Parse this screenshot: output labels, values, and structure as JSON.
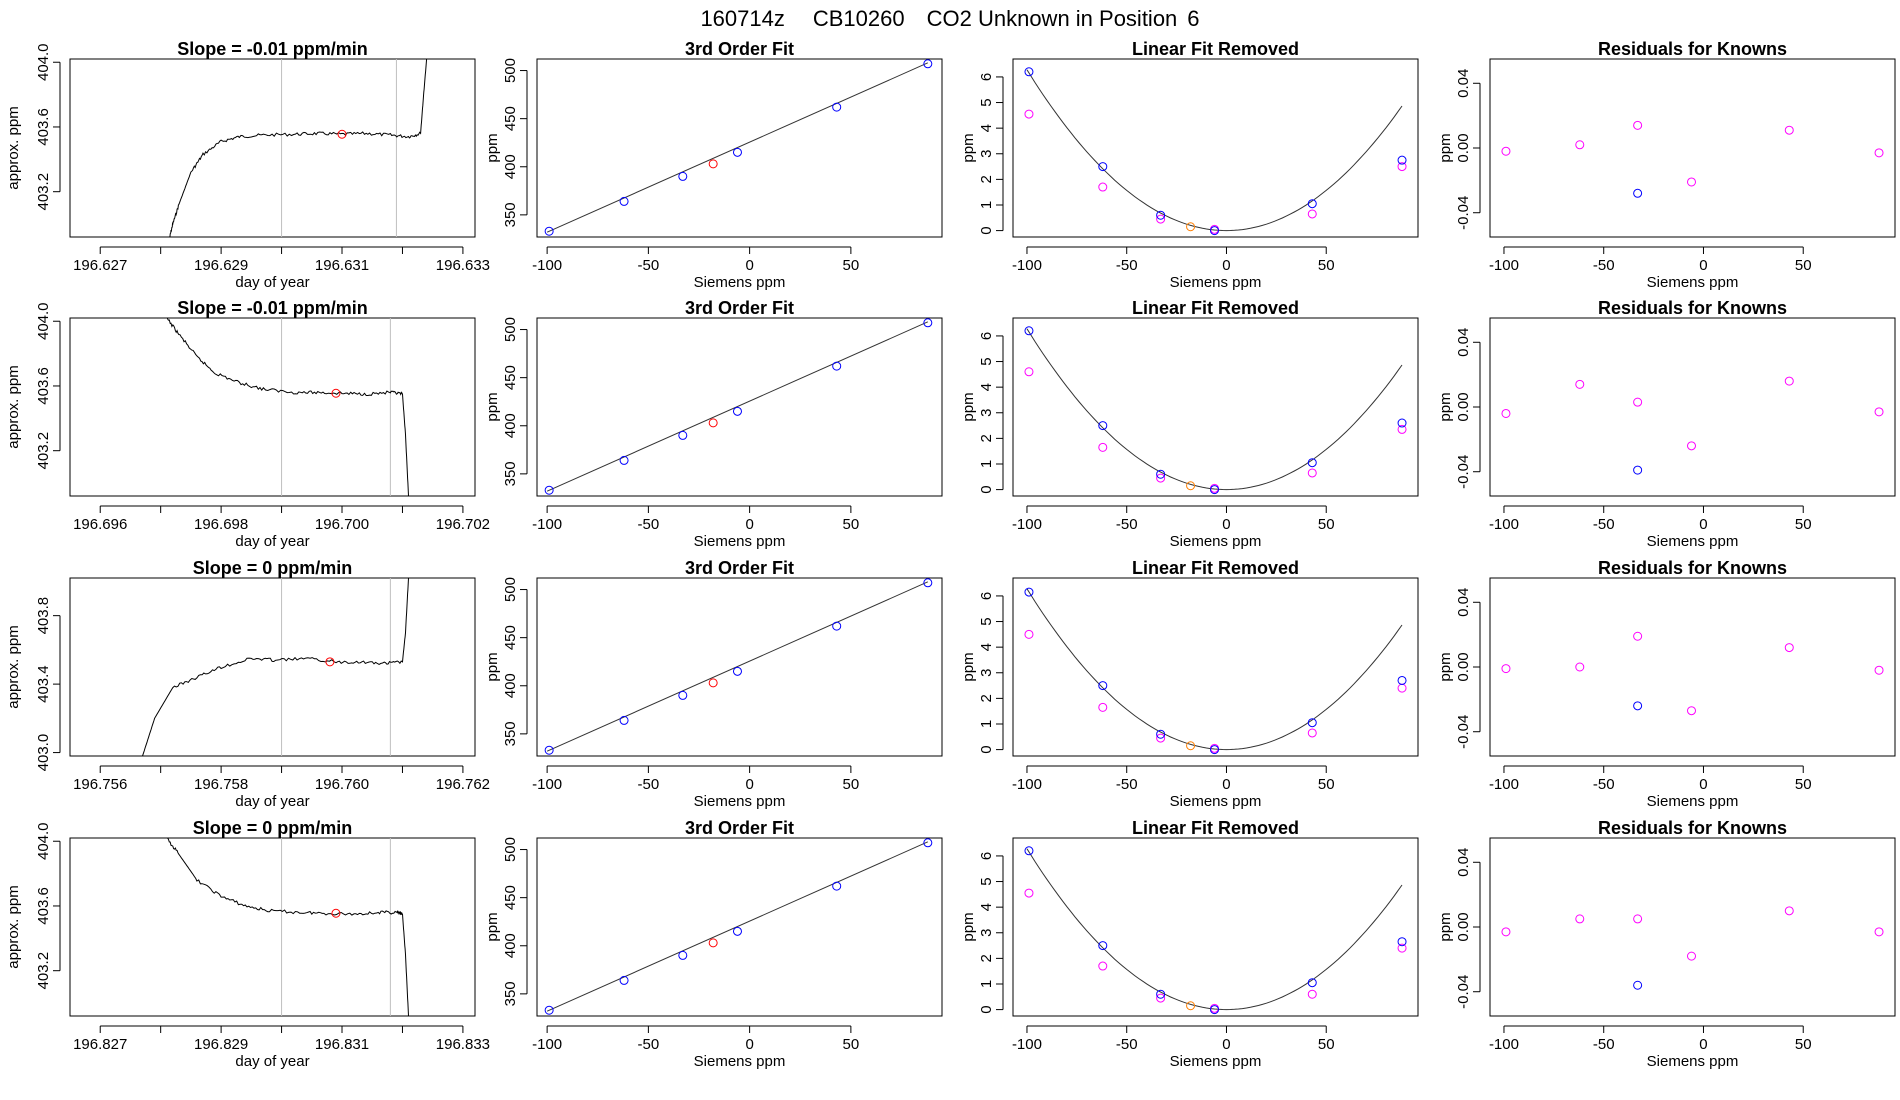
{
  "figure": {
    "date_code": "160714z",
    "cylinder_id": "CB10260",
    "description": "CO2 Unknown in Position",
    "position": "6"
  },
  "colors": {
    "trace": "#000000",
    "fit_line": "#333333",
    "vline": "#bfbfbf",
    "known_point": "#0000ff",
    "unknown_point": "#ff0000",
    "unknown_point_fit": "#ff7f00",
    "linear_resid": "#ff00ff"
  },
  "chart_data": [
    {
      "type": "line",
      "row": 0,
      "panel": "timeseries",
      "title_prefix": "Slope = ",
      "slope": "-0.01",
      "slope_unit": "ppm/min",
      "xlabel": "day of year",
      "ylabel": "approx. ppm",
      "xlim": [
        196.6265,
        196.6332
      ],
      "ylim": [
        402.92,
        404.02
      ],
      "xticks": [
        196.627,
        196.628,
        196.629,
        196.63,
        196.631,
        196.632,
        196.633
      ],
      "xtick_labels": [
        "196.627",
        "",
        "196.629",
        "",
        "196.631",
        "",
        "196.633"
      ],
      "yticks": [
        403.2,
        403.6,
        404.0
      ],
      "vlines": [
        196.63,
        196.6319
      ],
      "trace": [
        [
          196.62815,
          402.92
        ],
        [
          196.6282,
          403.0
        ],
        [
          196.6283,
          403.12
        ],
        [
          196.6285,
          403.32
        ],
        [
          196.6287,
          403.43
        ],
        [
          196.629,
          403.51
        ],
        [
          196.6293,
          403.54
        ],
        [
          196.6297,
          403.55
        ],
        [
          196.6302,
          403.555
        ],
        [
          196.6306,
          403.56
        ],
        [
          196.631,
          403.555
        ],
        [
          196.6314,
          403.56
        ],
        [
          196.6318,
          403.55
        ],
        [
          196.6321,
          403.54
        ],
        [
          196.6323,
          403.56
        ],
        [
          196.63235,
          403.8
        ],
        [
          196.6324,
          404.02
        ]
      ],
      "point": [
        196.631,
        403.555
      ]
    },
    {
      "type": "line",
      "row": 1,
      "panel": "timeseries",
      "title_prefix": "Slope = ",
      "slope": "-0.01",
      "slope_unit": "ppm/min",
      "xlabel": "day of year",
      "ylabel": "approx. ppm",
      "xlim": [
        196.6955,
        196.7022
      ],
      "ylim": [
        402.92,
        404.02
      ],
      "xticks": [
        196.696,
        196.697,
        196.698,
        196.699,
        196.7,
        196.701,
        196.702
      ],
      "xtick_labels": [
        "196.696",
        "",
        "196.698",
        "",
        "196.700",
        "",
        "196.702"
      ],
      "yticks": [
        403.2,
        403.6,
        404.0
      ],
      "vlines": [
        196.699,
        196.7008
      ],
      "trace": [
        [
          196.6971,
          404.02
        ],
        [
          196.6973,
          403.92
        ],
        [
          196.6976,
          403.78
        ],
        [
          196.6979,
          403.68
        ],
        [
          196.6983,
          403.62
        ],
        [
          196.6987,
          403.58
        ],
        [
          196.6992,
          403.56
        ],
        [
          196.6996,
          403.56
        ],
        [
          196.7,
          403.555
        ],
        [
          196.7004,
          403.55
        ],
        [
          196.7008,
          403.56
        ],
        [
          196.701,
          403.55
        ],
        [
          196.70105,
          403.3
        ],
        [
          196.7011,
          402.92
        ]
      ],
      "point": [
        196.6999,
        403.555
      ]
    },
    {
      "type": "line",
      "row": 2,
      "panel": "timeseries",
      "title_prefix": "Slope = ",
      "slope": "0",
      "slope_unit": "ppm/min",
      "xlabel": "day of year",
      "ylabel": "approx. ppm",
      "xlim": [
        196.7555,
        196.7622
      ],
      "ylim": [
        402.98,
        404.02
      ],
      "xticks": [
        196.756,
        196.757,
        196.758,
        196.759,
        196.76,
        196.761,
        196.762
      ],
      "xtick_labels": [
        "196.756",
        "",
        "196.758",
        "",
        "196.760",
        "",
        "196.762"
      ],
      "yticks": [
        403.0,
        403.4,
        403.8
      ],
      "vlines": [
        196.759,
        196.7608
      ],
      "trace": [
        [
          196.7567,
          402.98
        ],
        [
          196.7569,
          403.2
        ],
        [
          196.7572,
          403.38
        ],
        [
          196.7576,
          403.44
        ],
        [
          196.758,
          403.5
        ],
        [
          196.7585,
          403.55
        ],
        [
          196.7589,
          403.54
        ],
        [
          196.7594,
          403.55
        ],
        [
          196.7599,
          403.53
        ],
        [
          196.7603,
          403.53
        ],
        [
          196.7607,
          403.52
        ],
        [
          196.761,
          403.53
        ],
        [
          196.76105,
          403.7
        ],
        [
          196.7611,
          404.02
        ]
      ],
      "point": [
        196.7598,
        403.53
      ]
    },
    {
      "type": "line",
      "row": 3,
      "panel": "timeseries",
      "title_prefix": "Slope = ",
      "slope": "0",
      "slope_unit": "ppm/min",
      "xlabel": "day of year",
      "ylabel": "approx. ppm",
      "xlim": [
        196.8265,
        196.8332
      ],
      "ylim": [
        402.92,
        404.02
      ],
      "xticks": [
        196.827,
        196.828,
        196.829,
        196.83,
        196.831,
        196.832,
        196.833
      ],
      "xtick_labels": [
        "196.827",
        "",
        "196.829",
        "",
        "196.831",
        "",
        "196.833"
      ],
      "yticks": [
        403.2,
        403.6,
        404.0
      ],
      "vlines": [
        196.83,
        196.8318
      ],
      "trace": [
        [
          196.8281,
          404.02
        ],
        [
          196.8283,
          403.92
        ],
        [
          196.8286,
          403.76
        ],
        [
          196.829,
          403.66
        ],
        [
          196.8294,
          403.6
        ],
        [
          196.8298,
          403.57
        ],
        [
          196.8303,
          403.56
        ],
        [
          196.8307,
          403.555
        ],
        [
          196.8312,
          403.55
        ],
        [
          196.8316,
          403.56
        ],
        [
          196.8319,
          403.56
        ],
        [
          196.832,
          403.55
        ],
        [
          196.83205,
          403.3
        ],
        [
          196.8321,
          402.92
        ]
      ],
      "point": [
        196.8309,
        403.555
      ]
    },
    {
      "type": "scatter",
      "row": 0,
      "panel": "fit",
      "title": "3rd Order Fit",
      "xlabel": "Siemens ppm",
      "ylabel": "ppm",
      "xlim": [
        -105,
        95
      ],
      "ylim": [
        327,
        512
      ],
      "xticks": [
        -100,
        -50,
        0,
        50
      ],
      "yticks": [
        350,
        400,
        450,
        500
      ],
      "line": [
        [
          -100,
          332
        ],
        [
          88,
          508
        ]
      ],
      "known_x": [
        -99,
        -62,
        -33,
        -6,
        43,
        88
      ],
      "known_y": [
        333,
        364,
        390,
        415,
        462,
        507
      ],
      "unknown_x": [
        -18
      ],
      "unknown_y": [
        403
      ]
    },
    {
      "type": "scatter",
      "row": 1,
      "panel": "fit",
      "title": "3rd Order Fit",
      "xlabel": "Siemens ppm",
      "ylabel": "ppm",
      "xlim": [
        -105,
        95
      ],
      "ylim": [
        327,
        512
      ],
      "xticks": [
        -100,
        -50,
        0,
        50
      ],
      "yticks": [
        350,
        400,
        450,
        500
      ],
      "line": [
        [
          -100,
          332
        ],
        [
          88,
          508
        ]
      ],
      "known_x": [
        -99,
        -62,
        -33,
        -6,
        43,
        88
      ],
      "known_y": [
        333,
        364,
        390,
        415,
        462,
        507
      ],
      "unknown_x": [
        -18
      ],
      "unknown_y": [
        403
      ]
    },
    {
      "type": "scatter",
      "row": 2,
      "panel": "fit",
      "title": "3rd Order Fit",
      "xlabel": "Siemens ppm",
      "ylabel": "ppm",
      "xlim": [
        -105,
        95
      ],
      "ylim": [
        327,
        512
      ],
      "xticks": [
        -100,
        -50,
        0,
        50
      ],
      "yticks": [
        350,
        400,
        450,
        500
      ],
      "line": [
        [
          -100,
          332
        ],
        [
          88,
          508
        ]
      ],
      "known_x": [
        -99,
        -62,
        -33,
        -6,
        43,
        88
      ],
      "known_y": [
        333,
        364,
        390,
        415,
        462,
        507
      ],
      "unknown_x": [
        -18
      ],
      "unknown_y": [
        403
      ]
    },
    {
      "type": "scatter",
      "row": 3,
      "panel": "fit",
      "title": "3rd Order Fit",
      "xlabel": "Siemens ppm",
      "ylabel": "ppm",
      "xlim": [
        -105,
        95
      ],
      "ylim": [
        327,
        512
      ],
      "xticks": [
        -100,
        -50,
        0,
        50
      ],
      "yticks": [
        350,
        400,
        450,
        500
      ],
      "line": [
        [
          -100,
          332
        ],
        [
          88,
          508
        ]
      ],
      "known_x": [
        -99,
        -62,
        -33,
        -6,
        43,
        88
      ],
      "known_y": [
        333,
        364,
        390,
        415,
        462,
        507
      ],
      "unknown_x": [
        -18
      ],
      "unknown_y": [
        403
      ]
    },
    {
      "type": "scatter",
      "row": 0,
      "panel": "linear",
      "title": "Linear Fit Removed",
      "xlabel": "Siemens ppm",
      "ylabel": "ppm",
      "xlim": [
        -107,
        96
      ],
      "ylim": [
        -0.25,
        6.7
      ],
      "xticks": [
        -100,
        -50,
        0,
        50
      ],
      "yticks": [
        0,
        1,
        2,
        3,
        4,
        5,
        6
      ],
      "curve_coef": [
        0.000628,
        0.0
      ],
      "known_x": [
        -99,
        -62,
        -33,
        -6,
        43,
        88
      ],
      "known_y": [
        6.2,
        2.5,
        0.6,
        0.0,
        1.05,
        2.75
      ],
      "resid_x": [
        -99,
        -62,
        -33,
        -6,
        43,
        88
      ],
      "resid_y": [
        4.55,
        1.7,
        0.45,
        0.05,
        0.65,
        2.5
      ],
      "unknown_x": [
        -18
      ],
      "unknown_y": [
        0.15
      ]
    },
    {
      "type": "scatter",
      "row": 1,
      "panel": "linear",
      "title": "Linear Fit Removed",
      "xlabel": "Siemens ppm",
      "ylabel": "ppm",
      "xlim": [
        -107,
        96
      ],
      "ylim": [
        -0.25,
        6.7
      ],
      "xticks": [
        -100,
        -50,
        0,
        50
      ],
      "yticks": [
        0,
        1,
        2,
        3,
        4,
        5,
        6
      ],
      "curve_coef": [
        0.000628,
        0.0
      ],
      "known_x": [
        -99,
        -62,
        -33,
        -6,
        43,
        88
      ],
      "known_y": [
        6.2,
        2.5,
        0.6,
        0.0,
        1.05,
        2.6
      ],
      "resid_x": [
        -99,
        -62,
        -33,
        -6,
        43,
        88
      ],
      "resid_y": [
        4.6,
        1.65,
        0.45,
        0.05,
        0.65,
        2.35
      ],
      "unknown_x": [
        -18
      ],
      "unknown_y": [
        0.15
      ]
    },
    {
      "type": "scatter",
      "row": 2,
      "panel": "linear",
      "title": "Linear Fit Removed",
      "xlabel": "Siemens ppm",
      "ylabel": "ppm",
      "xlim": [
        -107,
        96
      ],
      "ylim": [
        -0.25,
        6.7
      ],
      "xticks": [
        -100,
        -50,
        0,
        50
      ],
      "yticks": [
        0,
        1,
        2,
        3,
        4,
        5,
        6
      ],
      "curve_coef": [
        0.000628,
        0.0
      ],
      "known_x": [
        -99,
        -62,
        -33,
        -6,
        43,
        88
      ],
      "known_y": [
        6.15,
        2.5,
        0.6,
        0.0,
        1.05,
        2.7
      ],
      "resid_x": [
        -99,
        -62,
        -33,
        -6,
        43,
        88
      ],
      "resid_y": [
        4.5,
        1.65,
        0.45,
        0.05,
        0.65,
        2.4
      ],
      "unknown_x": [
        -18
      ],
      "unknown_y": [
        0.15
      ]
    },
    {
      "type": "scatter",
      "row": 3,
      "panel": "linear",
      "title": "Linear Fit Removed",
      "xlabel": "Siemens ppm",
      "ylabel": "ppm",
      "xlim": [
        -107,
        96
      ],
      "ylim": [
        -0.25,
        6.7
      ],
      "xticks": [
        -100,
        -50,
        0,
        50
      ],
      "yticks": [
        0,
        1,
        2,
        3,
        4,
        5,
        6
      ],
      "curve_coef": [
        0.000628,
        0.0
      ],
      "known_x": [
        -99,
        -62,
        -33,
        -6,
        43,
        88
      ],
      "known_y": [
        6.2,
        2.5,
        0.6,
        0.0,
        1.05,
        2.65
      ],
      "resid_x": [
        -99,
        -62,
        -33,
        -6,
        43,
        88
      ],
      "resid_y": [
        4.55,
        1.7,
        0.45,
        0.05,
        0.6,
        2.4
      ],
      "unknown_x": [
        -18
      ],
      "unknown_y": [
        0.15
      ]
    },
    {
      "type": "scatter",
      "row": 0,
      "panel": "residuals",
      "title": "Residuals for Knowns",
      "xlabel": "Siemens ppm",
      "ylabel": "ppm",
      "xlim": [
        -107,
        96
      ],
      "ylim": [
        -0.055,
        0.055
      ],
      "xticks": [
        -100,
        -50,
        0,
        50
      ],
      "yticks": [
        -0.04,
        0.0,
        0.04
      ],
      "ytick_labels": [
        "-0.04",
        "0.00",
        "0.04"
      ],
      "resid_x": [
        -99,
        -62,
        -33,
        -6,
        43,
        88
      ],
      "resid_y": [
        -0.002,
        0.002,
        0.014,
        -0.021,
        0.011,
        -0.003
      ],
      "known_x": [
        -33
      ],
      "known_y": [
        -0.028
      ]
    },
    {
      "type": "scatter",
      "row": 1,
      "panel": "residuals",
      "title": "Residuals for Knowns",
      "xlabel": "Siemens ppm",
      "ylabel": "ppm",
      "xlim": [
        -107,
        96
      ],
      "ylim": [
        -0.055,
        0.055
      ],
      "xticks": [
        -100,
        -50,
        0,
        50
      ],
      "yticks": [
        -0.04,
        0.0,
        0.04
      ],
      "ytick_labels": [
        "-0.04",
        "0.00",
        "0.04"
      ],
      "resid_x": [
        -99,
        -62,
        -33,
        -6,
        43,
        88
      ],
      "resid_y": [
        -0.004,
        0.014,
        0.003,
        -0.024,
        0.016,
        -0.003
      ],
      "known_x": [
        -33
      ],
      "known_y": [
        -0.039
      ]
    },
    {
      "type": "scatter",
      "row": 2,
      "panel": "residuals",
      "title": "Residuals for Knowns",
      "xlabel": "Siemens ppm",
      "ylabel": "ppm",
      "xlim": [
        -107,
        96
      ],
      "ylim": [
        -0.055,
        0.055
      ],
      "xticks": [
        -100,
        -50,
        0,
        50
      ],
      "yticks": [
        -0.04,
        0.0,
        0.04
      ],
      "ytick_labels": [
        "-0.04",
        "0.00",
        "0.04"
      ],
      "resid_x": [
        -99,
        -62,
        -33,
        -6,
        43,
        88
      ],
      "resid_y": [
        -0.001,
        0.0,
        0.019,
        -0.027,
        0.012,
        -0.002
      ],
      "known_x": [
        -33
      ],
      "known_y": [
        -0.024
      ]
    },
    {
      "type": "scatter",
      "row": 3,
      "panel": "residuals",
      "title": "Residuals for Knowns",
      "xlabel": "Siemens ppm",
      "ylabel": "ppm",
      "xlim": [
        -107,
        96
      ],
      "ylim": [
        -0.055,
        0.055
      ],
      "xticks": [
        -100,
        -50,
        0,
        50
      ],
      "yticks": [
        -0.04,
        0.0,
        0.04
      ],
      "ytick_labels": [
        "-0.04",
        "0.00",
        "0.04"
      ],
      "resid_x": [
        -99,
        -62,
        -33,
        -6,
        43,
        88
      ],
      "resid_y": [
        -0.003,
        0.005,
        0.005,
        -0.018,
        0.01,
        -0.003
      ],
      "known_x": [
        -33
      ],
      "known_y": [
        -0.036
      ]
    }
  ]
}
